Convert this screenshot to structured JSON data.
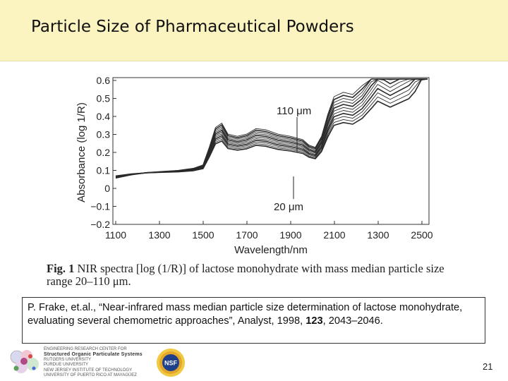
{
  "slide": {
    "title": "Particle Size of Pharmaceutical Powders",
    "page_number": "21"
  },
  "figure": {
    "y_axis_label": "Absorbance (log 1/R)",
    "x_axis_label": "Wavelength/nm",
    "y_ticks": [
      "0.6",
      "0.5",
      "0.4",
      "0.3",
      "0.2",
      "0.1",
      "0",
      "−0.1",
      "−0.2"
    ],
    "x_ticks": [
      "1100",
      "1300",
      "1500",
      "1700",
      "1900",
      "2100",
      "1300",
      "2500"
    ],
    "annotation_top": "110 μm",
    "annotation_bottom": "20 μm",
    "caption_label": "Fig. 1",
    "caption_text": "NIR spectra [log (1/R)] of lactose monohydrate with mass median particle size range 20–110 μm.",
    "spectra_color": "#2a2a2a"
  },
  "citation": {
    "prefix": "P. Frake, et.al., “Near-infrared mass median particle size determination of lactose monohydrate, evaluating several chemometric approaches”, Analyst,",
    "year": " 1998, ",
    "volume": "123",
    "pages": ", 2043–2046."
  },
  "footer": {
    "org_line_1": "ENGINEERING RESEARCH CENTER FOR",
    "org_line_2": "Structured Organic Particulate Systems",
    "org_line_3": "RUTGERS UNIVERSITY",
    "org_line_4": "PURDUE UNIVERSITY",
    "org_line_5": "NEW JERSEY INSTITUTE OF TECHNOLOGY",
    "org_line_6": "UNIVERSITY OF PUERTO RICO AT MAYAGÜEZ",
    "seal_text": "NSF",
    "logo_icon": "sopsc-logo-icon",
    "seal_icon": "nsf-seal-icon"
  }
}
